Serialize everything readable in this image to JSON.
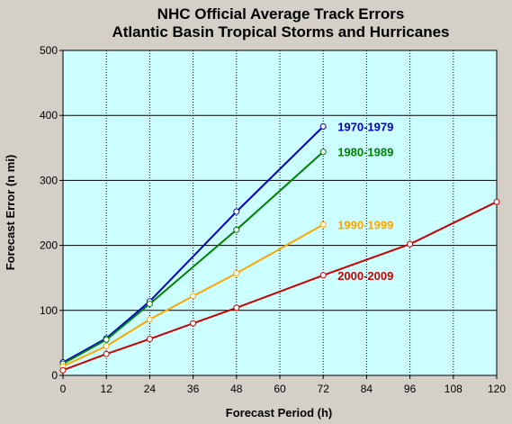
{
  "chart_data": {
    "type": "line",
    "title": "NHC Official Average Track Errors",
    "subtitle": "Atlantic Basin Tropical Storms and Hurricanes",
    "xlabel": "Forecast Period (h)",
    "ylabel": "Forecast Error (n mi)",
    "xlim": [
      0,
      120
    ],
    "ylim": [
      0,
      500
    ],
    "xticks": [
      "0",
      "12",
      "24",
      "36",
      "48",
      "60",
      "72",
      "84",
      "96",
      "108",
      "120"
    ],
    "yticks": [
      "0",
      "100",
      "200",
      "300",
      "400",
      "500"
    ],
    "grid": true,
    "legend": "inline labels at right end of each line",
    "plot_background": "#ccffff",
    "series": [
      {
        "name": "1970-1979",
        "color": "#0000cc",
        "x": [
          0,
          12,
          24,
          48,
          72
        ],
        "y": [
          20,
          57,
          114,
          252,
          383
        ]
      },
      {
        "name": "1980-1989",
        "color": "#008000",
        "x": [
          0,
          12,
          24,
          48,
          72
        ],
        "y": [
          18,
          55,
          110,
          224,
          344
        ]
      },
      {
        "name": "1990-1999",
        "color": "#ffa500",
        "x": [
          0,
          12,
          24,
          36,
          48,
          72
        ],
        "y": [
          14,
          45,
          86,
          122,
          157,
          232
        ]
      },
      {
        "name": "2000-2009",
        "color": "#cc0000",
        "x": [
          0,
          12,
          24,
          36,
          48,
          72,
          96,
          120
        ],
        "y": [
          8,
          33,
          56,
          80,
          104,
          154,
          202,
          267
        ]
      }
    ]
  }
}
